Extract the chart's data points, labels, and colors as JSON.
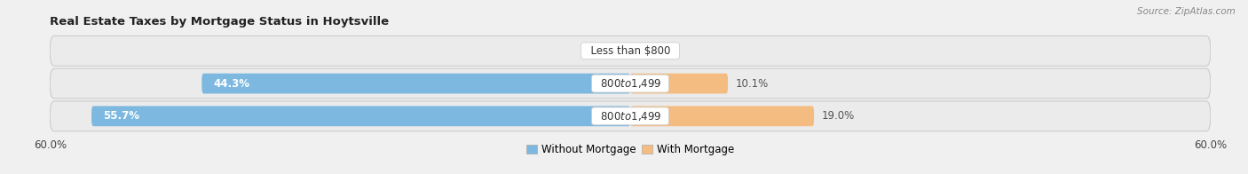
{
  "title": "Real Estate Taxes by Mortgage Status in Hoytsville",
  "source": "Source: ZipAtlas.com",
  "rows": [
    {
      "label": "Less than $800",
      "without_mortgage": 0.0,
      "with_mortgage": 0.0
    },
    {
      "label": "$800 to $1,499",
      "without_mortgage": 44.3,
      "with_mortgage": 10.1
    },
    {
      "label": "$800 to $1,499",
      "without_mortgage": 55.7,
      "with_mortgage": 19.0
    }
  ],
  "x_max": 60.0,
  "x_min": -60.0,
  "bar_height": 0.62,
  "color_without": "#7db8e0",
  "color_with": "#f4bc80",
  "bg_row_light": "#eeeeee",
  "bg_row_border": "#dddddd",
  "title_fontsize": 9.5,
  "label_fontsize": 8.5,
  "tick_fontsize": 8.5,
  "legend_fontsize": 8.5,
  "value_label_color_inside": "#ffffff",
  "value_label_color_outside": "#555555"
}
